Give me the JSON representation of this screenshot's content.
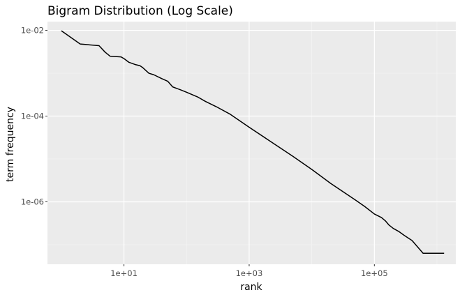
{
  "chart_data": {
    "type": "line",
    "title": "Bigram Distribution (Log Scale)",
    "xlabel": "rank",
    "ylabel": "term frequency",
    "x_scale": "log10",
    "y_scale": "log10",
    "xlim": [
      0.6,
      2000000
    ],
    "ylim": [
      3.5e-08,
      0.016
    ],
    "x_ticks": [
      {
        "value": 10,
        "label": "1e+01"
      },
      {
        "value": 1000,
        "label": "1e+03"
      },
      {
        "value": 100000,
        "label": "1e+05"
      }
    ],
    "y_ticks": [
      {
        "value": 0.01,
        "label": "1e-02"
      },
      {
        "value": 0.0001,
        "label": "1e-04"
      },
      {
        "value": 1e-06,
        "label": "1e-06"
      }
    ],
    "grid": true,
    "legend": "none",
    "series": [
      {
        "color": "#000000",
        "x": [
          1,
          2,
          4,
          5,
          6,
          9,
          10,
          12,
          15,
          18,
          20,
          25,
          30,
          40,
          50,
          60,
          80,
          100,
          150,
          200,
          300,
          500,
          1000,
          2000,
          5000,
          10000,
          20000,
          50000,
          70000,
          100000,
          130000,
          150000,
          170000,
          200000,
          250000,
          300000,
          400000,
          600000,
          1000000,
          1300000
        ],
        "y": [
          0.0098,
          0.0048,
          0.0044,
          0.0031,
          0.0025,
          0.0024,
          0.0022,
          0.0018,
          0.0016,
          0.0015,
          0.00135,
          0.001,
          0.00092,
          0.00075,
          0.00065,
          0.00048,
          0.00041,
          0.00036,
          0.00028,
          0.00022,
          0.000165,
          0.00011,
          5.5e-05,
          2.8e-05,
          1.15e-05,
          5.7e-06,
          2.7e-06,
          1.1e-06,
          7.8e-07,
          5.2e-07,
          4.3e-07,
          3.6e-07,
          2.9e-07,
          2.4e-07,
          2e-07,
          1.65e-07,
          1.25e-07,
          6.3e-08,
          6.3e-08,
          6.3e-08
        ]
      }
    ]
  }
}
